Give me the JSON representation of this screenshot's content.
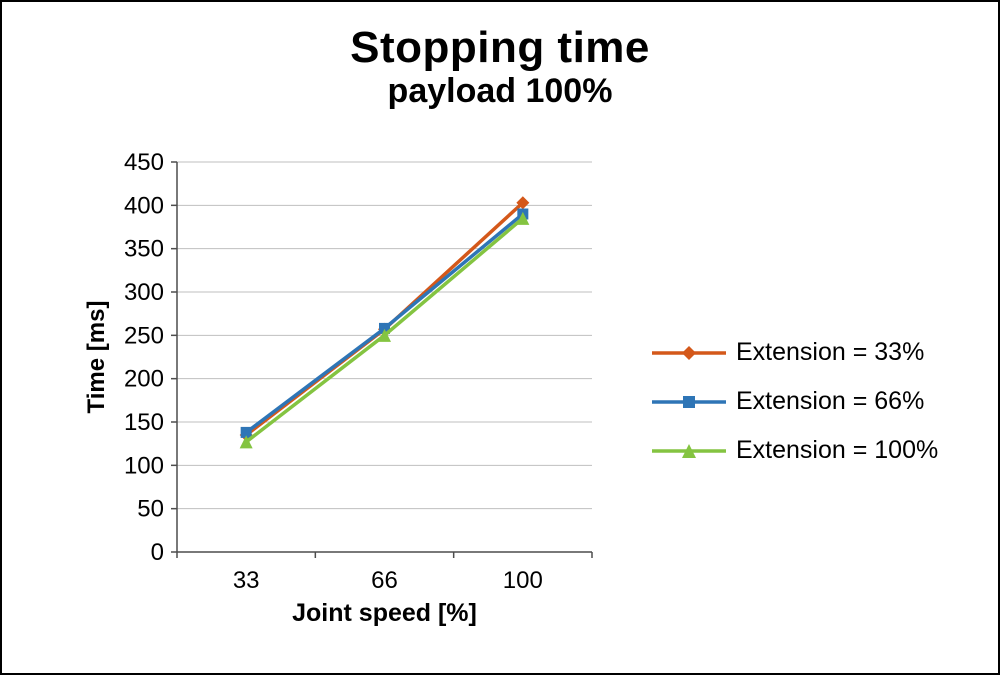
{
  "chart_data": {
    "type": "line",
    "title": "Stopping time",
    "subtitle": "payload 100%",
    "xlabel": "Joint speed [%]",
    "ylabel": "Time [ms]",
    "categories": [
      "33",
      "66",
      "100"
    ],
    "series": [
      {
        "name": "Extension = 33%",
        "color": "#D4581A",
        "marker": "diamond",
        "values": [
          135,
          257,
          403
        ]
      },
      {
        "name": "Extension = 66%",
        "color": "#2E75B6",
        "marker": "square",
        "values": [
          138,
          258,
          390
        ]
      },
      {
        "name": "Extension = 100%",
        "color": "#84C441",
        "marker": "triangle",
        "values": [
          127,
          250,
          385
        ]
      }
    ],
    "ylim": [
      0,
      450
    ],
    "yticks": [
      0,
      50,
      100,
      150,
      200,
      250,
      300,
      350,
      400,
      450
    ],
    "grid": true,
    "legend_position": "right",
    "gridline_color": "#BFBFBF",
    "axis_color": "#4D4D4D",
    "text_color": "#000000"
  }
}
